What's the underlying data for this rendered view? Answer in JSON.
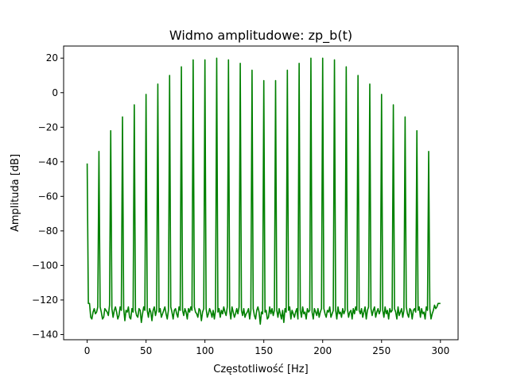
{
  "chart_data": {
    "type": "line",
    "title": "Widmo amplitudowe: zp_b(t)",
    "xlabel": "Częstotliwość [Hz]",
    "ylabel": "Amplituda [dB]",
    "xlim": [
      -20,
      315
    ],
    "ylim": [
      -143,
      27
    ],
    "xticks": [
      0,
      50,
      100,
      150,
      200,
      250,
      300
    ],
    "xtick_labels": [
      "0",
      "50",
      "100",
      "150",
      "200",
      "250",
      "300"
    ],
    "yticks": [
      20,
      0,
      -20,
      -40,
      -60,
      -80,
      -100,
      -120,
      -140
    ],
    "ytick_labels": [
      "20",
      "0",
      "−20",
      "−40",
      "−60",
      "−80",
      "−100",
      "−120",
      "−140"
    ],
    "grid": false,
    "legend": "none",
    "series": [
      {
        "color": "#008000",
        "x": [
          0,
          1,
          2,
          3,
          4,
          5,
          6,
          7,
          8,
          9,
          10,
          11,
          12,
          13,
          14,
          15,
          16,
          17,
          18,
          19,
          20,
          21,
          22,
          23,
          24,
          25,
          26,
          27,
          28,
          29,
          30,
          31,
          32,
          33,
          34,
          35,
          36,
          37,
          38,
          39,
          40,
          41,
          42,
          43,
          44,
          45,
          46,
          47,
          48,
          49,
          50,
          51,
          52,
          53,
          54,
          55,
          56,
          57,
          58,
          59,
          60,
          61,
          62,
          63,
          64,
          65,
          66,
          67,
          68,
          69,
          70,
          71,
          72,
          73,
          74,
          75,
          76,
          77,
          78,
          79,
          80,
          81,
          82,
          83,
          84,
          85,
          86,
          87,
          88,
          89,
          90,
          91,
          92,
          93,
          94,
          95,
          96,
          97,
          98,
          99,
          100,
          101,
          102,
          103,
          104,
          105,
          106,
          107,
          108,
          109,
          110,
          111,
          112,
          113,
          114,
          115,
          116,
          117,
          118,
          119,
          120,
          121,
          122,
          123,
          124,
          125,
          126,
          127,
          128,
          129,
          130,
          131,
          132,
          133,
          134,
          135,
          136,
          137,
          138,
          139,
          140,
          141,
          142,
          143,
          144,
          145,
          146,
          147,
          148,
          149,
          150,
          151,
          152,
          153,
          154,
          155,
          156,
          157,
          158,
          159,
          160,
          161,
          162,
          163,
          164,
          165,
          166,
          167,
          168,
          169,
          170,
          171,
          172,
          173,
          174,
          175,
          176,
          177,
          178,
          179,
          180,
          181,
          182,
          183,
          184,
          185,
          186,
          187,
          188,
          189,
          190,
          191,
          192,
          193,
          194,
          195,
          196,
          197,
          198,
          199,
          200,
          201,
          202,
          203,
          204,
          205,
          206,
          207,
          208,
          209,
          210,
          211,
          212,
          213,
          214,
          215,
          216,
          217,
          218,
          219,
          220,
          221,
          222,
          223,
          224,
          225,
          226,
          227,
          228,
          229,
          230,
          231,
          232,
          233,
          234,
          235,
          236,
          237,
          238,
          239,
          240,
          241,
          242,
          243,
          244,
          245,
          246,
          247,
          248,
          249,
          250,
          251,
          252,
          253,
          254,
          255,
          256,
          257,
          258,
          259,
          260,
          261,
          262,
          263,
          264,
          265,
          266,
          267,
          268,
          269,
          270,
          271,
          272,
          273,
          274,
          275,
          276,
          277,
          278,
          279,
          280,
          281,
          282,
          283,
          284,
          285,
          286,
          287,
          288,
          289,
          290,
          291,
          292,
          293,
          294,
          295,
          296,
          297,
          298,
          299,
          300
        ],
        "y": [
          -41,
          -122,
          -122,
          -130,
          -131,
          -127,
          -125,
          -128,
          -127,
          -124,
          -34,
          -124,
          -127,
          -131,
          -130,
          -125,
          -126,
          -127,
          -129,
          -123,
          -22,
          -125,
          -130,
          -126,
          -124,
          -127,
          -131,
          -129,
          -124,
          -126,
          -14,
          -125,
          -132,
          -126,
          -127,
          -124,
          -130,
          -131,
          -125,
          -127,
          -7,
          -126,
          -129,
          -130,
          -125,
          -126,
          -133,
          -128,
          -124,
          -126,
          -1,
          -126,
          -130,
          -125,
          -127,
          -132,
          -126,
          -124,
          -129,
          -126,
          5,
          -127,
          -125,
          -130,
          -128,
          -126,
          -124,
          -128,
          -131,
          -126,
          10,
          -124,
          -127,
          -131,
          -126,
          -125,
          -128,
          -130,
          -124,
          -126,
          15,
          -126,
          -129,
          -125,
          -127,
          -131,
          -125,
          -127,
          -124,
          -126,
          19,
          -124,
          -127,
          -128,
          -130,
          -125,
          -126,
          -132,
          -127,
          -125,
          19,
          -125,
          -130,
          -128,
          -125,
          -127,
          -130,
          -126,
          -131,
          -126,
          20,
          -127,
          -125,
          -130,
          -126,
          -128,
          -124,
          -127,
          -129,
          -124,
          19,
          -126,
          -131,
          -124,
          -127,
          -130,
          -128,
          -125,
          -128,
          -124,
          17,
          -126,
          -129,
          -125,
          -130,
          -128,
          -127,
          -125,
          -131,
          -126,
          13,
          -125,
          -129,
          -131,
          -126,
          -124,
          -127,
          -134,
          -127,
          -128,
          7,
          -127,
          -126,
          -131,
          -130,
          -124,
          -128,
          -125,
          -129,
          -126,
          7,
          -126,
          -130,
          -125,
          -128,
          -131,
          -126,
          -133,
          -125,
          -127,
          13,
          -126,
          -124,
          -131,
          -126,
          -128,
          -130,
          -127,
          -125,
          -131,
          17,
          -126,
          -130,
          -124,
          -128,
          -127,
          -131,
          -125,
          -127,
          -126,
          20,
          -127,
          -131,
          -125,
          -127,
          -129,
          -125,
          -130,
          -127,
          -125,
          20,
          -125,
          -128,
          -130,
          -126,
          -127,
          -124,
          -130,
          -128,
          -126,
          19,
          -126,
          -131,
          -124,
          -128,
          -127,
          -130,
          -125,
          -128,
          -126,
          15,
          -125,
          -130,
          -127,
          -126,
          -131,
          -125,
          -128,
          -124,
          -126,
          10,
          -126,
          -128,
          -125,
          -130,
          -127,
          -124,
          -131,
          -126,
          -124,
          5,
          -125,
          -129,
          -126,
          -124,
          -130,
          -127,
          -125,
          -128,
          -126,
          -1,
          -126,
          -130,
          -124,
          -128,
          -126,
          -131,
          -125,
          -127,
          -126,
          -7,
          -125,
          -127,
          -131,
          -124,
          -129,
          -127,
          -125,
          -130,
          -126,
          -14,
          -124,
          -128,
          -130,
          -125,
          -126,
          -131,
          -126,
          -125,
          -127,
          -22,
          -126,
          -124,
          -130,
          -125,
          -128,
          -127,
          -131,
          -124,
          -126,
          -34,
          -125,
          -131,
          -128,
          -126,
          -123,
          -125,
          -124,
          -122,
          -122,
          -122
        ]
      }
    ]
  }
}
